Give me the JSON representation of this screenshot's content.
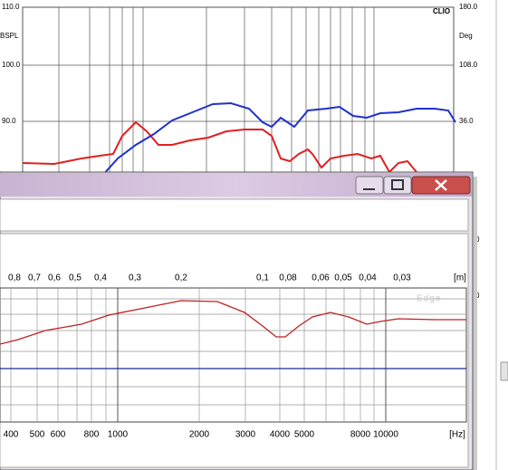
{
  "background_chart": {
    "brand": "CLIO",
    "left_unit": "BSPL",
    "left_ticks": [
      "110.0",
      "100.0",
      "90.0"
    ],
    "right_unit": "Deg",
    "right_ticks": [
      "180.0",
      "108.0",
      "36.0"
    ],
    "edge_labels": [
      "0",
      "0"
    ]
  },
  "edge_window": {
    "watermark": "Edge",
    "distance_ticks": [
      "0,8",
      "0,7",
      "0,6",
      "0,5",
      "0,4",
      "0,3",
      "0,2",
      "0,1",
      "0,08",
      "0,06",
      "0,05",
      "0,04",
      "0,03"
    ],
    "distance_unit": "[m]",
    "frequency_ticks": [
      "400",
      "500",
      "600",
      "800",
      "1000",
      "2000",
      "3000",
      "4000",
      "5000",
      "8000",
      "10000"
    ],
    "frequency_unit": "[Hz]"
  }
}
